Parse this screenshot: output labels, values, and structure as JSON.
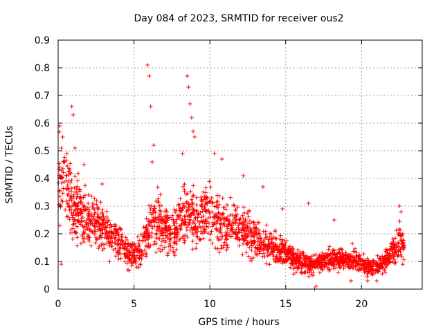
{
  "chart_data": {
    "type": "scatter",
    "title": "Day 084 of 2023, SRMTID for receiver ous2",
    "xlabel": "GPS time / hours",
    "ylabel": "SRMTID / TECUs",
    "xlim": [
      0,
      24
    ],
    "ylim": [
      0,
      0.9
    ],
    "x_ticks": [
      0,
      5,
      10,
      15,
      20
    ],
    "x_tick_labels": [
      "0",
      "5",
      "10",
      "15",
      "20"
    ],
    "y_ticks": [
      0,
      0.1,
      0.2,
      0.3,
      0.4,
      0.5,
      0.6,
      0.7,
      0.8,
      0.9
    ],
    "y_tick_labels": [
      "0",
      "0.1",
      "0.2",
      "0.3",
      "0.4",
      "0.5",
      "0.6",
      "0.7",
      "0.8",
      "0.9"
    ],
    "grid": true,
    "marker": "plus",
    "color": "#ff0000",
    "series": [
      {
        "name": "SRMTID",
        "trend": [
          {
            "x": 0.0,
            "y": 0.4
          },
          {
            "x": 0.5,
            "y": 0.38
          },
          {
            "x": 1.0,
            "y": 0.3
          },
          {
            "x": 1.5,
            "y": 0.3
          },
          {
            "x": 2.0,
            "y": 0.24
          },
          {
            "x": 2.5,
            "y": 0.24
          },
          {
            "x": 3.0,
            "y": 0.22
          },
          {
            "x": 3.5,
            "y": 0.19
          },
          {
            "x": 4.0,
            "y": 0.17
          },
          {
            "x": 4.5,
            "y": 0.14
          },
          {
            "x": 5.0,
            "y": 0.13
          },
          {
            "x": 5.5,
            "y": 0.14
          },
          {
            "x": 6.0,
            "y": 0.23
          },
          {
            "x": 6.5,
            "y": 0.25
          },
          {
            "x": 7.0,
            "y": 0.21
          },
          {
            "x": 7.5,
            "y": 0.2
          },
          {
            "x": 8.0,
            "y": 0.24
          },
          {
            "x": 8.5,
            "y": 0.28
          },
          {
            "x": 9.0,
            "y": 0.25
          },
          {
            "x": 9.5,
            "y": 0.26
          },
          {
            "x": 10.0,
            "y": 0.29
          },
          {
            "x": 10.5,
            "y": 0.25
          },
          {
            "x": 11.0,
            "y": 0.22
          },
          {
            "x": 11.5,
            "y": 0.23
          },
          {
            "x": 12.0,
            "y": 0.22
          },
          {
            "x": 12.5,
            "y": 0.2
          },
          {
            "x": 13.0,
            "y": 0.18
          },
          {
            "x": 13.5,
            "y": 0.17
          },
          {
            "x": 14.0,
            "y": 0.16
          },
          {
            "x": 14.5,
            "y": 0.14
          },
          {
            "x": 15.0,
            "y": 0.13
          },
          {
            "x": 15.5,
            "y": 0.11
          },
          {
            "x": 16.0,
            "y": 0.1
          },
          {
            "x": 16.5,
            "y": 0.09
          },
          {
            "x": 17.0,
            "y": 0.09
          },
          {
            "x": 17.5,
            "y": 0.1
          },
          {
            "x": 18.0,
            "y": 0.11
          },
          {
            "x": 18.5,
            "y": 0.11
          },
          {
            "x": 19.0,
            "y": 0.1
          },
          {
            "x": 19.5,
            "y": 0.11
          },
          {
            "x": 20.0,
            "y": 0.09
          },
          {
            "x": 20.5,
            "y": 0.08
          },
          {
            "x": 21.0,
            "y": 0.08
          },
          {
            "x": 21.5,
            "y": 0.1
          },
          {
            "x": 22.0,
            "y": 0.13
          },
          {
            "x": 22.5,
            "y": 0.17
          },
          {
            "x": 22.8,
            "y": 0.16
          }
        ],
        "spikes": [
          {
            "x": 0.1,
            "y": 0.59
          },
          {
            "x": 0.3,
            "y": 0.55
          },
          {
            "x": 0.9,
            "y": 0.66
          },
          {
            "x": 1.0,
            "y": 0.63
          },
          {
            "x": 1.1,
            "y": 0.51
          },
          {
            "x": 1.7,
            "y": 0.45
          },
          {
            "x": 2.9,
            "y": 0.38
          },
          {
            "x": 5.9,
            "y": 0.81
          },
          {
            "x": 6.0,
            "y": 0.77
          },
          {
            "x": 6.1,
            "y": 0.66
          },
          {
            "x": 6.3,
            "y": 0.52
          },
          {
            "x": 6.2,
            "y": 0.46
          },
          {
            "x": 8.5,
            "y": 0.77
          },
          {
            "x": 8.6,
            "y": 0.73
          },
          {
            "x": 8.7,
            "y": 0.67
          },
          {
            "x": 8.8,
            "y": 0.62
          },
          {
            "x": 8.9,
            "y": 0.57
          },
          {
            "x": 9.0,
            "y": 0.55
          },
          {
            "x": 8.2,
            "y": 0.49
          },
          {
            "x": 10.3,
            "y": 0.49
          },
          {
            "x": 10.8,
            "y": 0.47
          },
          {
            "x": 12.2,
            "y": 0.41
          },
          {
            "x": 13.5,
            "y": 0.37
          },
          {
            "x": 14.8,
            "y": 0.29
          },
          {
            "x": 16.5,
            "y": 0.31
          },
          {
            "x": 18.2,
            "y": 0.25
          },
          {
            "x": 22.5,
            "y": 0.3
          },
          {
            "x": 22.6,
            "y": 0.28
          },
          {
            "x": 0.2,
            "y": 0.09
          },
          {
            "x": 3.4,
            "y": 0.1
          },
          {
            "x": 4.6,
            "y": 0.07
          },
          {
            "x": 16.9,
            "y": 0.0
          },
          {
            "x": 17.0,
            "y": 0.01
          },
          {
            "x": 19.3,
            "y": 0.03
          },
          {
            "x": 20.4,
            "y": 0.03
          },
          {
            "x": 21.0,
            "y": 0.03
          }
        ]
      }
    ]
  }
}
